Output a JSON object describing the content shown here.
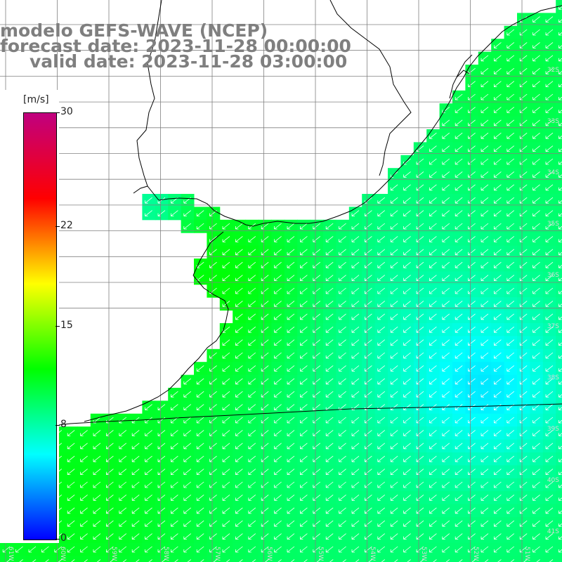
{
  "title": {
    "line1": "modelo GEFS-WAVE (NCEP)",
    "line2": "forecast date: 2023-11-28 00:00:00",
    "line3": "valid date: 2023-11-28 03:00:00"
  },
  "legend": {
    "unit": "[m/s]",
    "range": [
      0,
      30
    ],
    "ticks": [
      {
        "value": 30,
        "label": "30"
      },
      {
        "value": 22,
        "label": "22"
      },
      {
        "value": 15,
        "label": "15"
      },
      {
        "value": 8,
        "label": "8"
      },
      {
        "value": 0,
        "label": "0"
      }
    ],
    "colors": [
      "#0000ff",
      "#0080ff",
      "#00ffff",
      "#00ff80",
      "#00ff00",
      "#80ff00",
      "#ffff00",
      "#ff8000",
      "#ff0000",
      "#e00040",
      "#c0007f"
    ]
  },
  "lat_labels": [
    "32S",
    "33S",
    "34S",
    "35S",
    "36S",
    "37S",
    "38S",
    "39S",
    "40S",
    "41S"
  ],
  "lon_labels": [
    "61W",
    "60W",
    "59W",
    "58W",
    "57W",
    "56W",
    "55W",
    "54W",
    "53W",
    "52W",
    "51W"
  ],
  "colors": {
    "land": "#ffffff",
    "coast": "#000000",
    "grid": "#808080",
    "arrow": "#ffffff",
    "title": "#7f7f7f"
  }
}
